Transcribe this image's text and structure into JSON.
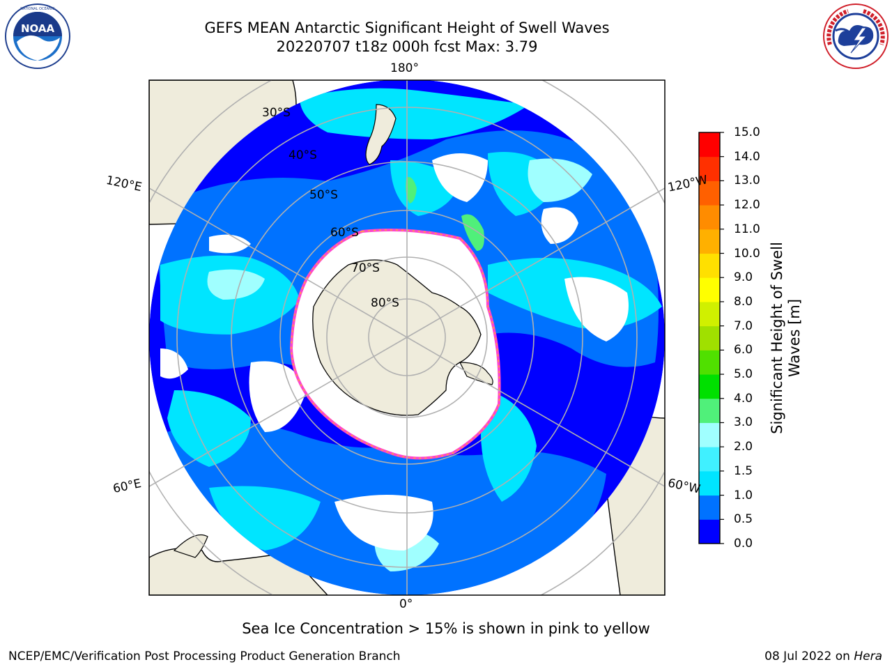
{
  "header": {
    "title_line1": "GEFS MEAN Antarctic Significant Height of Swell Waves",
    "title_line2": "20220707 t18z 000h fcst   Max: 3.79"
  },
  "logos": {
    "left": {
      "name": "noaa-logo",
      "text": "NOAA",
      "ring_text": "NATIONAL OCEANIC AND ATMOSPHERIC ADMINISTRATION · U.S. DEPARTMENT OF COMMERCE"
    },
    "right": {
      "name": "nws-logo",
      "ring_text": "NATIONAL WEATHER SERVICE"
    }
  },
  "map": {
    "projection": "south-polar-stereographic",
    "longitude_labels": {
      "top": "180°",
      "bottom": "0°",
      "upper_left": "120°E",
      "upper_right": "120°W",
      "lower_left": "60°E",
      "lower_right": "60°W"
    },
    "latitude_labels": [
      "30°S",
      "40°S",
      "50°S",
      "60°S",
      "70°S",
      "80°S"
    ],
    "colors": {
      "land": "#efecdc",
      "sea_ice_missing": "#ffffff",
      "grid": "#b0b0b0",
      "coast": "#000000"
    }
  },
  "colorbar": {
    "label": "Significant Height of Swell Waves [m]",
    "ticks": [
      "0.0",
      "0.5",
      "1.0",
      "1.5",
      "2.0",
      "3.0",
      "4.0",
      "5.0",
      "6.0",
      "7.0",
      "8.0",
      "9.0",
      "10.0",
      "11.0",
      "12.0",
      "13.0",
      "14.0",
      "15.0"
    ],
    "colors": [
      "#0000ff",
      "#0072ff",
      "#00e5ff",
      "#40f0ff",
      "#a0ffff",
      "#50f07a",
      "#00e000",
      "#50e000",
      "#a0e000",
      "#d0f000",
      "#ffff00",
      "#ffe000",
      "#ffb000",
      "#ff8c00",
      "#ff6000",
      "#ff3000",
      "#ff0000"
    ]
  },
  "chart_data": {
    "type": "heatmap",
    "title": "GEFS MEAN Antarctic Significant Height of Swell Waves",
    "subtitle": "20220707 t18z 000h fcst   Max: 3.79",
    "variable": "Significant Height of Swell Waves",
    "units": "m",
    "max_value": 3.79,
    "color_scale_range": [
      0,
      15
    ],
    "note": "Sea Ice Concentration > 15% is shown in pink to yellow"
  },
  "footer": {
    "note": "Sea Ice Concentration > 15% is shown in pink to yellow",
    "left": "NCEP/EMC/Verification Post Processing Product Generation Branch",
    "right_date": "08 Jul 2022 on",
    "right_host": "Hera"
  }
}
